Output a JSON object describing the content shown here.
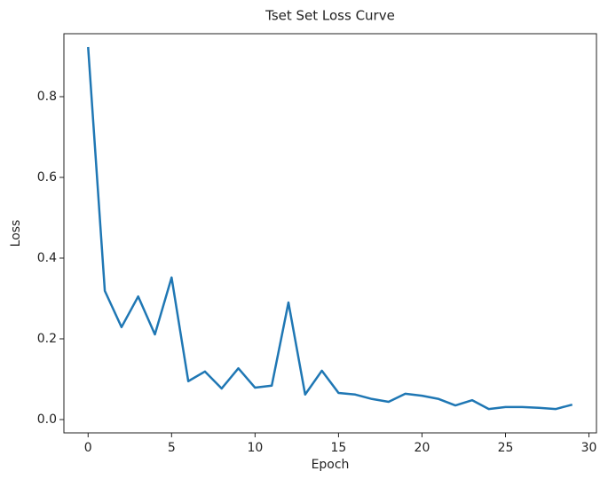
{
  "chart_data": {
    "type": "line",
    "title": "Tset Set Loss Curve",
    "x_label": "Epoch",
    "y_label": "Loss",
    "x": [
      0,
      1,
      2,
      3,
      4,
      5,
      6,
      7,
      8,
      9,
      10,
      11,
      12,
      13,
      14,
      15,
      16,
      17,
      18,
      19,
      20,
      21,
      22,
      23,
      24,
      25,
      26,
      27,
      28,
      29
    ],
    "series": [
      {
        "color": "#1f77b4",
        "values": [
          0.923,
          0.319,
          0.229,
          0.305,
          0.211,
          0.352,
          0.095,
          0.119,
          0.077,
          0.127,
          0.079,
          0.084,
          0.29,
          0.062,
          0.121,
          0.066,
          0.062,
          0.051,
          0.044,
          0.064,
          0.059,
          0.051,
          0.035,
          0.048,
          0.026,
          0.031,
          0.031,
          0.029,
          0.026,
          0.037
        ]
      }
    ],
    "xlim": [
      -1.45,
      30.45
    ],
    "xticks": [
      0,
      5,
      10,
      15,
      20,
      25,
      30
    ],
    "ylim": [
      -0.033,
      0.956
    ],
    "yticks": [
      {
        "value": 0,
        "label": "0.0"
      },
      0.2,
      0.4,
      0.6,
      0.8
    ]
  }
}
